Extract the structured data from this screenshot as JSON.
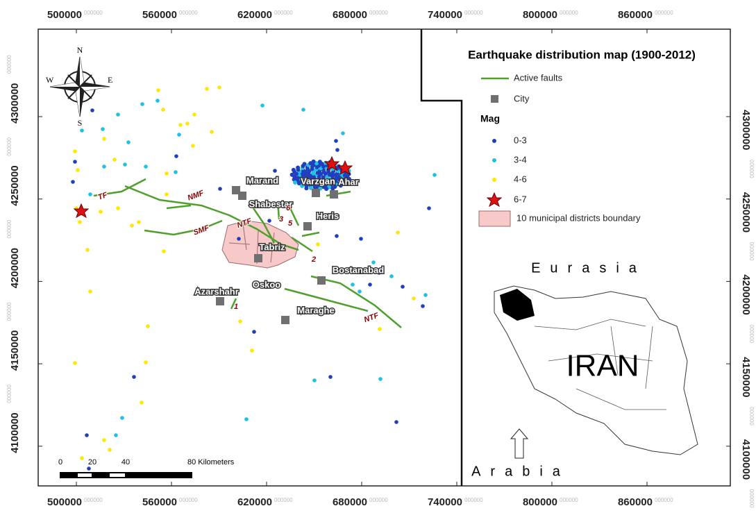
{
  "map": {
    "x_ticks": [
      500000,
      560000,
      620000,
      680000,
      740000,
      800000,
      860000
    ],
    "y_ticks": [
      4300000,
      4250000,
      4200000,
      4150000,
      4100000
    ],
    "tick_suffix": "000000",
    "compass": {
      "n": "N",
      "e": "E",
      "s": "S",
      "w": "W"
    },
    "legend": {
      "title": "Earthquake distribution map (1900-2012)",
      "faults": "Active faults",
      "city": "City",
      "mag_title": "Mag",
      "mag_items": [
        "0-3",
        "3-4",
        "4-6",
        "6-7"
      ],
      "boundary": "10 municipal districts boundary"
    },
    "cities": [
      "Marand",
      "Varzgan",
      "Ahar",
      "Shabestar",
      "Heris",
      "Tabriz",
      "Bostanabad",
      "Oskoo",
      "Azarshahr",
      "Maraghe"
    ],
    "fault_labels": [
      "TF",
      "NMF",
      "SMF",
      "NTF",
      "NTF",
      "3",
      "6",
      "5",
      "2",
      "1"
    ],
    "scale": [
      "0",
      "20",
      "40",
      "80 Kilometers"
    ],
    "inset": {
      "north": "Eurasia",
      "country": "IRAN",
      "south": "Arabia"
    }
  }
}
